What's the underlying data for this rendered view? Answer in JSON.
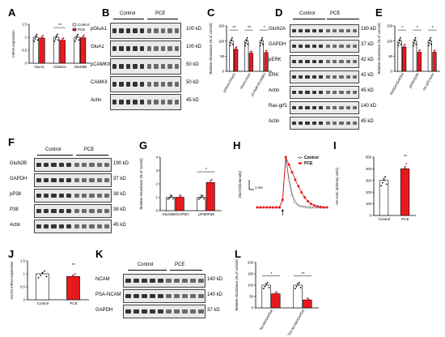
{
  "colors": {
    "control": "#ffffff",
    "pce": "#e8191d",
    "axis": "#000000",
    "blot": "#1a1a1a"
  },
  "panels": [
    {
      "id": "A",
      "letter": "A"
    },
    {
      "id": "B",
      "letter": "B"
    },
    {
      "id": "C",
      "letter": "C"
    },
    {
      "id": "D",
      "letter": "D"
    },
    {
      "id": "E",
      "letter": "E"
    },
    {
      "id": "F",
      "letter": "F"
    },
    {
      "id": "G",
      "letter": "G"
    },
    {
      "id": "H",
      "letter": "H"
    },
    {
      "id": "I",
      "letter": "I"
    },
    {
      "id": "J",
      "letter": "J"
    },
    {
      "id": "K",
      "letter": "K"
    },
    {
      "id": "L",
      "letter": "L"
    }
  ],
  "blots": {
    "B": {
      "control": "Control",
      "pce": "PCE",
      "rows": [
        {
          "label": "pGluA1",
          "kd": "100 kD"
        },
        {
          "label": "GluA1",
          "kd": "100 kD"
        },
        {
          "label": "pCAMKII",
          "kd": "50 kD"
        },
        {
          "label": "CAMKII",
          "kd": "50 kD"
        },
        {
          "label": "Actin",
          "kd": "45 kD"
        }
      ]
    },
    "D": {
      "control": "Control",
      "pce": "PCE",
      "rows": [
        {
          "label": "GluN2A",
          "kd": "180 kD"
        },
        {
          "label": "GAPDH",
          "kd": "37 kD"
        },
        {
          "label": "pERK",
          "kd": "42 kD"
        },
        {
          "label": "ERK",
          "kd": "42 kD"
        },
        {
          "label": "Actin",
          "kd": "45 kD"
        },
        {
          "label": "Ras-grf1",
          "kd": "140 kD"
        },
        {
          "label": "Actin",
          "kd": "45 kD"
        }
      ]
    },
    "F": {
      "control": "Control",
      "pce": "PCE",
      "rows": [
        {
          "label": "GluN2B",
          "kd": "190 kD"
        },
        {
          "label": "GAPDH",
          "kd": "37 kD"
        },
        {
          "label": "pP38",
          "kd": "38 kD"
        },
        {
          "label": "P38",
          "kd": "38 kD"
        },
        {
          "label": "Actin",
          "kd": "45 kD"
        }
      ]
    },
    "K": {
      "control": "Control",
      "pce": "PCE",
      "rows": [
        {
          "label": "NCAM",
          "kd": "140 kD"
        },
        {
          "label": "PSA-NCAM",
          "kd": "140 kD"
        },
        {
          "label": "GAPDH",
          "kd": "37 kD"
        }
      ]
    }
  },
  "chart_data": [
    {
      "panel": "A",
      "type": "bar",
      "categories": [
        "GluA1",
        "GluN2A",
        "GluN2B"
      ],
      "series": [
        {
          "name": "Control",
          "values": [
            1.0,
            1.0,
            1.0
          ]
        },
        {
          "name": "PCE",
          "values": [
            0.97,
            0.88,
            0.98
          ]
        }
      ],
      "ylabel": "mRNA expression",
      "ylim": [
        0,
        1.5
      ],
      "yticks": [
        0.0,
        0.5,
        1.0,
        1.5
      ],
      "significance": [
        "",
        "**",
        ""
      ],
      "legend": "top-right"
    },
    {
      "panel": "C",
      "type": "bar",
      "categories": [
        "pGluA1/GluA1",
        "GluA1/Actin",
        "pCAMKII/CAMKII"
      ],
      "series": [
        {
          "name": "Control",
          "values": [
            100,
            100,
            100
          ]
        },
        {
          "name": "PCE",
          "values": [
            73,
            60,
            62
          ]
        }
      ],
      "ylabel": "Relative Abundance (% of control)",
      "ylim": [
        0,
        150
      ],
      "yticks": [
        0,
        50,
        100,
        150
      ],
      "significance": [
        "**",
        "**",
        "*"
      ]
    },
    {
      "panel": "E",
      "type": "bar",
      "categories": [
        "GluN2A/GAPDH",
        "pERK/ERK",
        "ras-grf1/actin"
      ],
      "series": [
        {
          "name": "Control",
          "values": [
            100,
            100,
            100
          ]
        },
        {
          "name": "PCE",
          "values": [
            80,
            63,
            63
          ]
        }
      ],
      "ylabel": "Relative Abundance (% of control)",
      "ylim": [
        0,
        150
      ],
      "yticks": [
        0,
        50,
        100,
        150
      ],
      "significance": [
        "*",
        "*",
        "*"
      ]
    },
    {
      "panel": "G",
      "type": "bar",
      "categories": [
        "GluN2B/GAPDH",
        "pP38/P38"
      ],
      "series": [
        {
          "name": "Control",
          "values": [
            1.0,
            1.0
          ]
        },
        {
          "name": "PCE",
          "values": [
            1.0,
            2.1
          ]
        }
      ],
      "ylabel": "Relative Abundance (% of control)",
      "ylim": [
        0,
        4
      ],
      "yticks": [
        0,
        1,
        2,
        3,
        4
      ],
      "significance": [
        "",
        "*"
      ]
    },
    {
      "panel": "H",
      "type": "line",
      "x": [
        0,
        1,
        2,
        3,
        4,
        5,
        6,
        7,
        8,
        9,
        10,
        11,
        12,
        13,
        14,
        15,
        16,
        17,
        18,
        19,
        20,
        21,
        22
      ],
      "series": [
        {
          "name": "Control",
          "values": [
            0,
            0,
            0,
            0,
            0,
            0,
            0,
            0,
            0.15,
            1.0,
            0.55,
            0.25,
            0.1,
            0.04,
            0.02,
            0.01,
            0,
            0,
            0,
            0,
            0,
            0,
            0
          ]
        },
        {
          "name": "PCE",
          "values": [
            0,
            0,
            0,
            0,
            0,
            0,
            0,
            0,
            0.15,
            1.0,
            0.85,
            0.7,
            0.55,
            0.42,
            0.3,
            0.2,
            0.12,
            0.07,
            0.04,
            0.02,
            0.01,
            0,
            0
          ]
        }
      ],
      "scalebar_y": "25uM [Glutamate]",
      "scalebar_x": "1 sec",
      "legend": "top-right"
    },
    {
      "panel": "I",
      "type": "bar",
      "categories": [
        "Control",
        "PCE"
      ],
      "values": [
        300,
        400
      ],
      "ylabel": "Net AUC (arbitrary units)",
      "ylim": [
        0,
        500
      ],
      "yticks": [
        0,
        100,
        200,
        300,
        400,
        500
      ],
      "significance": [
        "",
        "**"
      ]
    },
    {
      "panel": "J",
      "type": "bar",
      "categories": [
        "Control",
        "PCE"
      ],
      "values": [
        1.0,
        0.9
      ],
      "ylabel": "NCAM mRNA expression",
      "ylim": [
        0,
        1.5
      ],
      "yticks": [
        0.0,
        0.5,
        1.0,
        1.5
      ],
      "significance": [
        "",
        "**"
      ]
    },
    {
      "panel": "L",
      "type": "bar",
      "categories": [
        "NCAM/GAPDH",
        "PSA-NCAM/GAPDH"
      ],
      "series": [
        {
          "name": "Control",
          "values": [
            100,
            100
          ]
        },
        {
          "name": "PCE",
          "values": [
            62,
            35
          ]
        }
      ],
      "ylabel": "Relative Abundance (% of control)",
      "ylim": [
        0,
        200
      ],
      "yticks": [
        0,
        50,
        100,
        150,
        200
      ],
      "significance": [
        "*",
        "**"
      ]
    }
  ]
}
